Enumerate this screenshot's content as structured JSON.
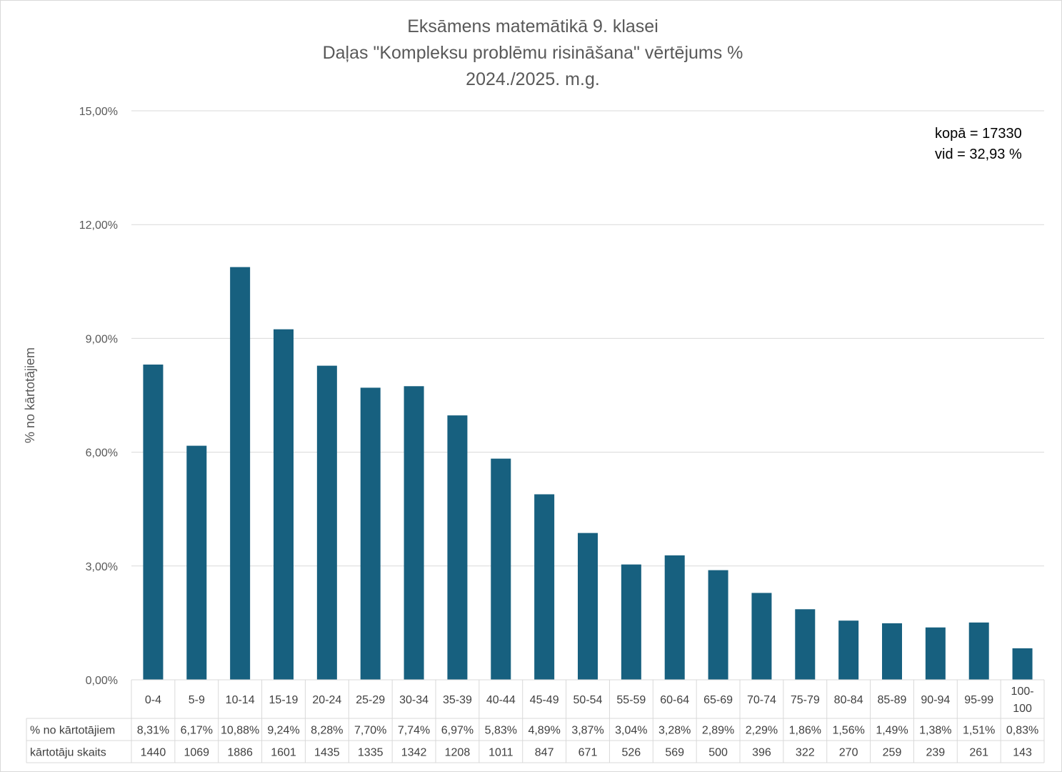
{
  "chart_data": {
    "type": "bar",
    "title": [
      "Eksāmens matemātikā 9. klasei",
      "Daļas \"Kompleksu problēmu risināšana\" vērtējums %",
      "2024./2025. m.g."
    ],
    "xlabel": "",
    "ylabel": "% no kārtotājiem",
    "ylim": [
      0,
      15
    ],
    "yticks": [
      "0,00%",
      "3,00%",
      "6,00%",
      "9,00%",
      "12,00%",
      "15,00%"
    ],
    "ytick_values": [
      0,
      3,
      6,
      9,
      12,
      15
    ],
    "grid": true,
    "legend": "none",
    "bar_color": "#17607f",
    "categories": [
      "0-4",
      "5-9",
      "10-14",
      "15-19",
      "20-24",
      "25-29",
      "30-34",
      "35-39",
      "40-44",
      "45-49",
      "50-54",
      "55-59",
      "60-64",
      "65-69",
      "70-74",
      "75-79",
      "80-84",
      "85-89",
      "90-94",
      "95-99",
      "100-100"
    ],
    "values": [
      8.31,
      6.17,
      10.88,
      9.24,
      8.28,
      7.7,
      7.74,
      6.97,
      5.83,
      4.89,
      3.87,
      3.04,
      3.28,
      2.89,
      2.29,
      1.86,
      1.56,
      1.49,
      1.38,
      1.51,
      0.83
    ],
    "annotations": [
      "kopā = 17330",
      "vid = 32,93 %"
    ],
    "table": {
      "rows": [
        {
          "label": "% no kārtotājiem",
          "cells": [
            "8,31%",
            "6,17%",
            "10,88%",
            "9,24%",
            "8,28%",
            "7,70%",
            "7,74%",
            "6,97%",
            "5,83%",
            "4,89%",
            "3,87%",
            "3,04%",
            "3,28%",
            "2,89%",
            "2,29%",
            "1,86%",
            "1,56%",
            "1,49%",
            "1,38%",
            "1,51%",
            "0,83%"
          ]
        },
        {
          "label": "kārtotāju skaits",
          "cells": [
            "1440",
            "1069",
            "1886",
            "1601",
            "1435",
            "1335",
            "1342",
            "1208",
            "1011",
            "847",
            "671",
            "526",
            "569",
            "500",
            "396",
            "322",
            "270",
            "259",
            "239",
            "261",
            "143"
          ]
        }
      ]
    }
  }
}
